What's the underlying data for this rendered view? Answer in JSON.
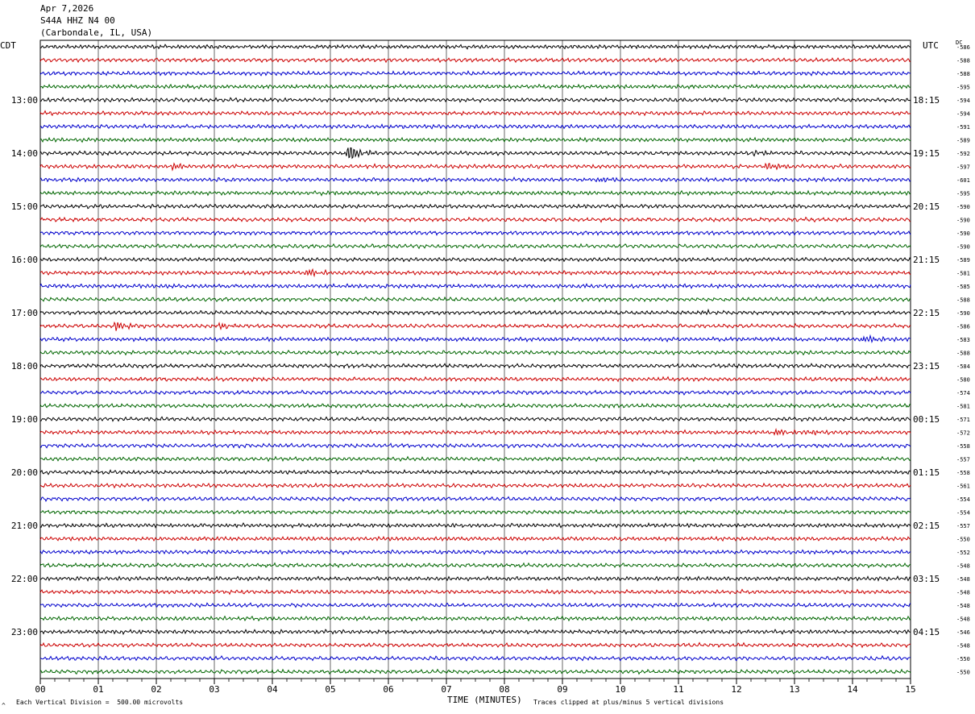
{
  "header": {
    "date": "Apr 7,2026",
    "station": "S44A HHZ N4 00",
    "location": "(Carbondale, IL, USA)"
  },
  "left_timezone": "CDT",
  "right_timezone": "UTC",
  "dc_label": "DC",
  "footer": {
    "scale_note": "Each Vertical Division =  500.00 microvolts",
    "clip_note": "Traces clipped at plus/minus 5 vertical divisions",
    "corner_mark": "^"
  },
  "colors": {
    "trace_cycle": [
      "#000000",
      "#cc0000",
      "#0000cc",
      "#006600"
    ],
    "grid": "#000000"
  },
  "chart_data": {
    "type": "line",
    "title": "S44A HHZ N4 00",
    "xlabel": "TIME (MINUTES)",
    "ylabel": "",
    "x_ticks": [
      "00",
      "01",
      "02",
      "03",
      "04",
      "05",
      "06",
      "07",
      "08",
      "09",
      "10",
      "11",
      "12",
      "13",
      "14",
      "15"
    ],
    "xlim": [
      0,
      15
    ],
    "left_hour_labels": [
      "13:00",
      "14:00",
      "15:00",
      "16:00",
      "17:00",
      "18:00",
      "19:00",
      "20:00",
      "21:00",
      "22:00",
      "23:00"
    ],
    "right_hour_labels": [
      "18:15",
      "19:15",
      "20:15",
      "21:15",
      "22:15",
      "23:15",
      "00:15",
      "01:15",
      "02:15",
      "03:15",
      "04:15"
    ],
    "dc_offsets": [
      "-586",
      "-588",
      "-588",
      "-595",
      "-594",
      "-594",
      "-591",
      "-589",
      "-592",
      "-597",
      "-601",
      "-595",
      "-590",
      "-590",
      "-590",
      "-590",
      "-589",
      "-581",
      "-585",
      "-588",
      "-590",
      "-586",
      "-583",
      "-588",
      "-584",
      "-580",
      "-574",
      "-581",
      "-571",
      "-572",
      "-558",
      "-557",
      "-558",
      "-561",
      "-554",
      "-554",
      "-557",
      "-550",
      "-552",
      "-548",
      "-548",
      "-548",
      "-548",
      "-548",
      "-546",
      "-548",
      "-550",
      "-550"
    ],
    "trace_count": 48,
    "events": [
      {
        "trace": 8,
        "minute": 5.3,
        "amplitude": 9
      },
      {
        "trace": 8,
        "minute": 12.3,
        "amplitude": 3
      },
      {
        "trace": 9,
        "minute": 2.3,
        "amplitude": 3
      },
      {
        "trace": 9,
        "minute": 12.5,
        "amplitude": 4
      },
      {
        "trace": 10,
        "minute": 9.6,
        "amplitude": 3
      },
      {
        "trace": 20,
        "minute": 11.4,
        "amplitude": 2
      },
      {
        "trace": 21,
        "minute": 1.3,
        "amplitude": 5
      },
      {
        "trace": 21,
        "minute": 3.1,
        "amplitude": 3
      },
      {
        "trace": 22,
        "minute": 14.2,
        "amplitude": 4
      },
      {
        "trace": 17,
        "minute": 4.6,
        "amplitude": 4
      },
      {
        "trace": 29,
        "minute": 12.7,
        "amplitude": 3
      },
      {
        "trace": 29,
        "minute": 13.2,
        "amplitude": 2
      }
    ]
  }
}
